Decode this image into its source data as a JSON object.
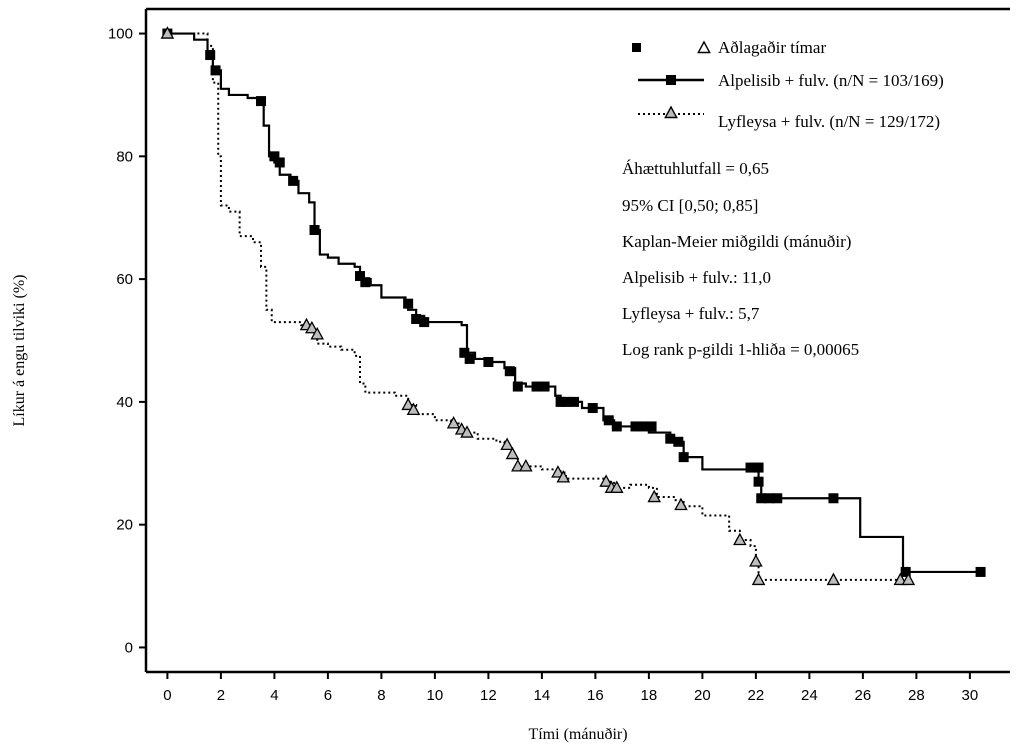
{
  "chart_data": {
    "type": "line",
    "subtype": "kaplan-meier",
    "xlabel": "Tími (mánuðir)",
    "ylabel": "Líkur á engu tilviki (%)",
    "xlim": [
      -0.8,
      31.5
    ],
    "ylim": [
      -4,
      104
    ],
    "xticks": [
      0,
      2,
      4,
      6,
      8,
      10,
      12,
      14,
      16,
      18,
      20,
      22,
      24,
      26,
      28,
      30
    ],
    "yticks": [
      0,
      20,
      40,
      60,
      80,
      100
    ],
    "grid": false,
    "legend": {
      "position": "top-right",
      "censor_label": "Aðlagaðir tímar",
      "entries": [
        {
          "label": "Alpelisib + fulv. (n/N = 103/169)",
          "series": 0
        },
        {
          "label": "Lyfleysa + fulv. (n/N = 129/172)",
          "series": 1
        }
      ]
    },
    "annotations": [
      "Áhættuhlutfall = 0,65",
      "95% CI [0,50; 0,85]",
      "Kaplan-Meier miðgildi (mánuðir)",
      "Alpelisib + fulv.: 11,0",
      "Lyfleysa + fulv.: 5,7",
      "Log rank p-gildi 1-hliða = 0,00065"
    ],
    "series": [
      {
        "name": "Alpelisib + fulv.",
        "line_style": "solid",
        "marker": "filled-square",
        "color": "#000000",
        "steps": [
          [
            0,
            100
          ],
          [
            1.0,
            99
          ],
          [
            1.5,
            97
          ],
          [
            1.7,
            94
          ],
          [
            2.0,
            91
          ],
          [
            2.3,
            90
          ],
          [
            3.0,
            89.5
          ],
          [
            3.4,
            88.5
          ],
          [
            3.6,
            85
          ],
          [
            3.8,
            80
          ],
          [
            4.0,
            79
          ],
          [
            4.2,
            77
          ],
          [
            4.6,
            76
          ],
          [
            4.9,
            74
          ],
          [
            5.3,
            72.5
          ],
          [
            5.5,
            68
          ],
          [
            5.7,
            64
          ],
          [
            6.0,
            63.5
          ],
          [
            6.4,
            62.5
          ],
          [
            7.0,
            62
          ],
          [
            7.2,
            60
          ],
          [
            7.6,
            59
          ],
          [
            8.0,
            57
          ],
          [
            8.9,
            56
          ],
          [
            9.0,
            55
          ],
          [
            9.3,
            54
          ],
          [
            9.6,
            53
          ],
          [
            11.0,
            52.5
          ],
          [
            11.2,
            48
          ],
          [
            11.5,
            47
          ],
          [
            12.0,
            46.5
          ],
          [
            12.6,
            45.5
          ],
          [
            13.0,
            43
          ],
          [
            13.4,
            42.5
          ],
          [
            14.5,
            41
          ],
          [
            14.7,
            40
          ],
          [
            15.5,
            39
          ],
          [
            16.3,
            37
          ],
          [
            16.7,
            36
          ],
          [
            18.0,
            35
          ],
          [
            18.8,
            33.5
          ],
          [
            19.3,
            31
          ],
          [
            20.0,
            29
          ],
          [
            21.7,
            29.3
          ],
          [
            22.1,
            27
          ],
          [
            22.2,
            24.3
          ],
          [
            24.8,
            24.3
          ],
          [
            25.9,
            18
          ],
          [
            27.5,
            12.3
          ],
          [
            30.4,
            12.3
          ]
        ],
        "censored": [
          [
            0,
            100
          ],
          [
            1.6,
            96.5
          ],
          [
            1.8,
            94
          ],
          [
            3.5,
            89
          ],
          [
            4.0,
            80
          ],
          [
            4.2,
            79
          ],
          [
            4.7,
            76
          ],
          [
            5.5,
            68
          ],
          [
            7.2,
            60.5
          ],
          [
            7.4,
            59.5
          ],
          [
            9.0,
            56
          ],
          [
            9.3,
            53.5
          ],
          [
            9.6,
            53
          ],
          [
            11.1,
            48
          ],
          [
            11.3,
            47
          ],
          [
            12.0,
            46.5
          ],
          [
            12.8,
            45
          ],
          [
            13.1,
            42.5
          ],
          [
            13.8,
            42.5
          ],
          [
            14.1,
            42.5
          ],
          [
            14.7,
            40
          ],
          [
            14.9,
            40
          ],
          [
            15.2,
            40
          ],
          [
            15.9,
            39
          ],
          [
            16.5,
            37
          ],
          [
            16.8,
            36
          ],
          [
            17.5,
            36
          ],
          [
            17.8,
            36
          ],
          [
            18.1,
            36
          ],
          [
            18.8,
            34
          ],
          [
            19.1,
            33.5
          ],
          [
            19.3,
            31
          ],
          [
            21.8,
            29.3
          ],
          [
            22.1,
            29.3
          ],
          [
            22.1,
            27
          ],
          [
            22.2,
            24.3
          ],
          [
            22.5,
            24.3
          ],
          [
            22.8,
            24.3
          ],
          [
            24.9,
            24.3
          ],
          [
            27.6,
            12.3
          ],
          [
            30.4,
            12.3
          ]
        ]
      },
      {
        "name": "Lyfleysa + fulv.",
        "line_style": "dotted",
        "marker": "open-triangle",
        "color": "#000000",
        "steps": [
          [
            0,
            100
          ],
          [
            1.5,
            98
          ],
          [
            1.7,
            92
          ],
          [
            1.9,
            80
          ],
          [
            2.0,
            72
          ],
          [
            2.3,
            71
          ],
          [
            2.7,
            67
          ],
          [
            3.2,
            66
          ],
          [
            3.5,
            62
          ],
          [
            3.7,
            55
          ],
          [
            3.9,
            53
          ],
          [
            5.0,
            52.5
          ],
          [
            5.3,
            51.5
          ],
          [
            5.6,
            49.5
          ],
          [
            6.0,
            49
          ],
          [
            6.5,
            48.5
          ],
          [
            7.0,
            47.5
          ],
          [
            7.2,
            43
          ],
          [
            7.4,
            41.5
          ],
          [
            8.5,
            41
          ],
          [
            9.0,
            39.5
          ],
          [
            9.3,
            38
          ],
          [
            10.0,
            37
          ],
          [
            10.6,
            36.5
          ],
          [
            11.0,
            35
          ],
          [
            11.6,
            34
          ],
          [
            12.3,
            33.5
          ],
          [
            12.6,
            32.5
          ],
          [
            12.9,
            31
          ],
          [
            13.1,
            29.5
          ],
          [
            14.0,
            29
          ],
          [
            14.7,
            28.5
          ],
          [
            14.9,
            27.5
          ],
          [
            16.3,
            27
          ],
          [
            16.7,
            26
          ],
          [
            17.3,
            26.5
          ],
          [
            18.0,
            26
          ],
          [
            18.3,
            24.5
          ],
          [
            19.0,
            24
          ],
          [
            19.3,
            23
          ],
          [
            20.0,
            21.5
          ],
          [
            21.0,
            19
          ],
          [
            21.4,
            17.5
          ],
          [
            21.8,
            16.5
          ],
          [
            22.0,
            14
          ],
          [
            22.1,
            11
          ],
          [
            27.7,
            11
          ]
        ],
        "censored": [
          [
            0,
            100
          ],
          [
            5.2,
            52.5
          ],
          [
            5.4,
            52
          ],
          [
            5.6,
            51
          ],
          [
            9.0,
            39.5
          ],
          [
            9.2,
            38.7
          ],
          [
            10.7,
            36.5
          ],
          [
            11.0,
            35.5
          ],
          [
            11.2,
            35
          ],
          [
            12.7,
            33
          ],
          [
            12.9,
            31.5
          ],
          [
            13.1,
            29.5
          ],
          [
            13.4,
            29.5
          ],
          [
            14.6,
            28.5
          ],
          [
            14.8,
            27.7
          ],
          [
            16.4,
            27
          ],
          [
            16.6,
            26
          ],
          [
            16.8,
            26
          ],
          [
            18.2,
            24.5
          ],
          [
            19.2,
            23.2
          ],
          [
            21.4,
            17.5
          ],
          [
            22.0,
            14
          ],
          [
            22.1,
            11
          ],
          [
            24.9,
            11
          ],
          [
            27.4,
            11
          ],
          [
            27.7,
            11
          ]
        ]
      }
    ]
  }
}
